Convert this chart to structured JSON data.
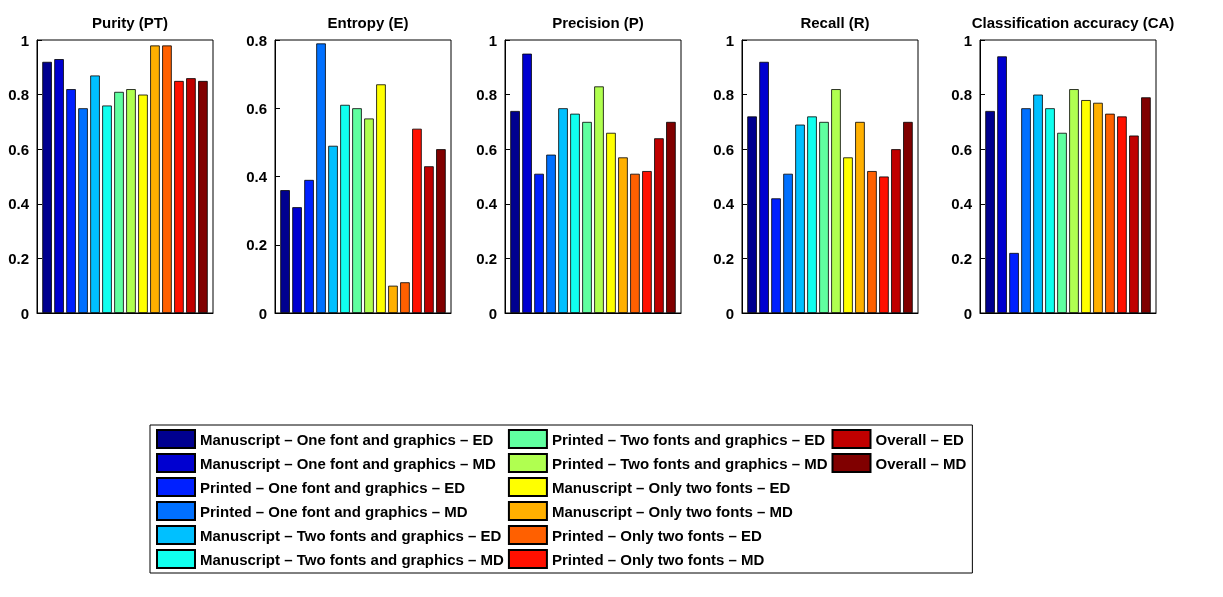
{
  "chart_data": [
    {
      "type": "bar",
      "title": "Purity (PT)",
      "categories": [
        null
      ],
      "ylim": [
        0,
        1
      ],
      "yticks": [
        0,
        0.2,
        0.4,
        0.6,
        0.8,
        1
      ],
      "legend": "bottom",
      "series": [
        {
          "name": "Manuscript – One font and graphics – ED",
          "color": "#00008f",
          "values": [
            0.92
          ]
        },
        {
          "name": "Manuscript – One font and graphics – MD",
          "color": "#0000d0",
          "values": [
            0.93
          ]
        },
        {
          "name": "Printed – One font and graphics – ED",
          "color": "#0020ff",
          "values": [
            0.82
          ]
        },
        {
          "name": "Printed – One font and graphics – MD",
          "color": "#0070ff",
          "values": [
            0.75
          ]
        },
        {
          "name": "Manuscript – Two fonts and graphics – ED",
          "color": "#00c0ff",
          "values": [
            0.87
          ]
        },
        {
          "name": "Manuscript – Two fonts and graphics – MD",
          "color": "#10ffef",
          "values": [
            0.76
          ]
        },
        {
          "name": "Printed – Two fonts and graphics – ED",
          "color": "#60ffa0",
          "values": [
            0.81
          ]
        },
        {
          "name": "Printed – Two fonts and graphics – MD",
          "color": "#b0ff50",
          "values": [
            0.82
          ]
        },
        {
          "name": "Manuscript – Only two fonts – ED",
          "color": "#ffff00",
          "values": [
            0.8
          ]
        },
        {
          "name": "Manuscript – Only two fonts – MD",
          "color": "#ffb000",
          "values": [
            0.98
          ]
        },
        {
          "name": "Printed – Only two fonts – ED",
          "color": "#ff6000",
          "values": [
            0.98
          ]
        },
        {
          "name": "Printed – Only two fonts – MD",
          "color": "#ff1000",
          "values": [
            0.85
          ]
        },
        {
          "name": "Overall – ED",
          "color": "#c00000",
          "values": [
            0.86
          ]
        },
        {
          "name": "Overall – MD",
          "color": "#800000",
          "values": [
            0.85
          ]
        }
      ]
    },
    {
      "type": "bar",
      "title": "Entropy (E)",
      "categories": [
        null
      ],
      "ylim": [
        0,
        0.8
      ],
      "yticks": [
        0,
        0.2,
        0.4,
        0.6,
        0.8
      ],
      "series": [
        {
          "color": "#00008f",
          "values": [
            0.36
          ]
        },
        {
          "color": "#0000d0",
          "values": [
            0.31
          ]
        },
        {
          "color": "#0020ff",
          "values": [
            0.39
          ]
        },
        {
          "color": "#0070ff",
          "values": [
            0.79
          ]
        },
        {
          "color": "#00c0ff",
          "values": [
            0.49
          ]
        },
        {
          "color": "#10ffef",
          "values": [
            0.61
          ]
        },
        {
          "color": "#60ffa0",
          "values": [
            0.6
          ]
        },
        {
          "color": "#b0ff50",
          "values": [
            0.57
          ]
        },
        {
          "color": "#ffff00",
          "values": [
            0.67
          ]
        },
        {
          "color": "#ffb000",
          "values": [
            0.08
          ]
        },
        {
          "color": "#ff6000",
          "values": [
            0.09
          ]
        },
        {
          "color": "#ff1000",
          "values": [
            0.54
          ]
        },
        {
          "color": "#c00000",
          "values": [
            0.43
          ]
        },
        {
          "color": "#800000",
          "values": [
            0.48
          ]
        }
      ]
    },
    {
      "type": "bar",
      "title": "Precision (P)",
      "categories": [
        null
      ],
      "ylim": [
        0,
        1
      ],
      "yticks": [
        0,
        0.2,
        0.4,
        0.6,
        0.8,
        1
      ],
      "series": [
        {
          "color": "#00008f",
          "values": [
            0.74
          ]
        },
        {
          "color": "#0000d0",
          "values": [
            0.95
          ]
        },
        {
          "color": "#0020ff",
          "values": [
            0.51
          ]
        },
        {
          "color": "#0070ff",
          "values": [
            0.58
          ]
        },
        {
          "color": "#00c0ff",
          "values": [
            0.75
          ]
        },
        {
          "color": "#10ffef",
          "values": [
            0.73
          ]
        },
        {
          "color": "#60ffa0",
          "values": [
            0.7
          ]
        },
        {
          "color": "#b0ff50",
          "values": [
            0.83
          ]
        },
        {
          "color": "#ffff00",
          "values": [
            0.66
          ]
        },
        {
          "color": "#ffb000",
          "values": [
            0.57
          ]
        },
        {
          "color": "#ff6000",
          "values": [
            0.51
          ]
        },
        {
          "color": "#ff1000",
          "values": [
            0.52
          ]
        },
        {
          "color": "#c00000",
          "values": [
            0.64
          ]
        },
        {
          "color": "#800000",
          "values": [
            0.7
          ]
        }
      ]
    },
    {
      "type": "bar",
      "title": "Recall (R)",
      "categories": [
        null
      ],
      "ylim": [
        0,
        1
      ],
      "yticks": [
        0,
        0.2,
        0.4,
        0.6,
        0.8,
        1
      ],
      "series": [
        {
          "color": "#00008f",
          "values": [
            0.72
          ]
        },
        {
          "color": "#0000d0",
          "values": [
            0.92
          ]
        },
        {
          "color": "#0020ff",
          "values": [
            0.42
          ]
        },
        {
          "color": "#0070ff",
          "values": [
            0.51
          ]
        },
        {
          "color": "#00c0ff",
          "values": [
            0.69
          ]
        },
        {
          "color": "#10ffef",
          "values": [
            0.72
          ]
        },
        {
          "color": "#60ffa0",
          "values": [
            0.7
          ]
        },
        {
          "color": "#b0ff50",
          "values": [
            0.82
          ]
        },
        {
          "color": "#ffff00",
          "values": [
            0.57
          ]
        },
        {
          "color": "#ffb000",
          "values": [
            0.7
          ]
        },
        {
          "color": "#ff6000",
          "values": [
            0.52
          ]
        },
        {
          "color": "#ff1000",
          "values": [
            0.5
          ]
        },
        {
          "color": "#c00000",
          "values": [
            0.6
          ]
        },
        {
          "color": "#800000",
          "values": [
            0.7
          ]
        }
      ]
    },
    {
      "type": "bar",
      "title": "Classification accuracy (CA)",
      "categories": [
        null
      ],
      "ylim": [
        0,
        1
      ],
      "yticks": [
        0,
        0.2,
        0.4,
        0.6,
        0.8,
        1
      ],
      "series": [
        {
          "color": "#00008f",
          "values": [
            0.74
          ]
        },
        {
          "color": "#0000d0",
          "values": [
            0.94
          ]
        },
        {
          "color": "#0020ff",
          "values": [
            0.22
          ]
        },
        {
          "color": "#0070ff",
          "values": [
            0.75
          ]
        },
        {
          "color": "#00c0ff",
          "values": [
            0.8
          ]
        },
        {
          "color": "#10ffef",
          "values": [
            0.75
          ]
        },
        {
          "color": "#60ffa0",
          "values": [
            0.66
          ]
        },
        {
          "color": "#b0ff50",
          "values": [
            0.82
          ]
        },
        {
          "color": "#ffff00",
          "values": [
            0.78
          ]
        },
        {
          "color": "#ffb000",
          "values": [
            0.77
          ]
        },
        {
          "color": "#ff6000",
          "values": [
            0.73
          ]
        },
        {
          "color": "#ff1000",
          "values": [
            0.72
          ]
        },
        {
          "color": "#c00000",
          "values": [
            0.65
          ]
        },
        {
          "color": "#800000",
          "values": [
            0.79
          ]
        }
      ]
    }
  ]
}
